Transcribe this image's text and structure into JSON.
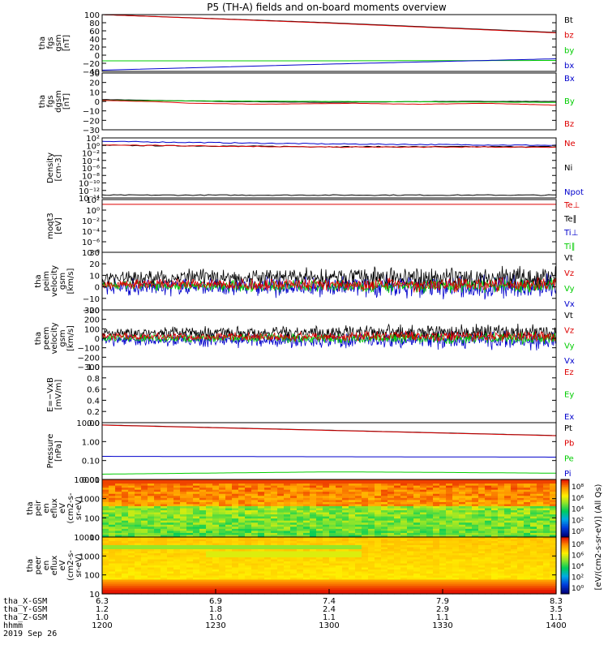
{
  "colors": {
    "black": "#000000",
    "red": "#dd0000",
    "green": "#00cc00",
    "blue": "#0000cc"
  },
  "chart_data": {
    "type": "line",
    "title": "P5 (TH-A) fields and on-board moments overview",
    "date": "2019 Sep 26",
    "time_axis": {
      "ticks": [
        "1200",
        "1230",
        "1300",
        "1330",
        "1400"
      ],
      "ephemeris": [
        {
          "label": "tha_X-GSM",
          "values": [
            "6.3",
            "6.9",
            "7.4",
            "7.9",
            "8.3"
          ]
        },
        {
          "label": "tha_Y-GSM",
          "values": [
            "1.2",
            "1.8",
            "2.4",
            "2.9",
            "3.5"
          ]
        },
        {
          "label": "tha_Z-GSM",
          "values": [
            "1.0",
            "1.0",
            "1.1",
            "1.1",
            "1.1"
          ]
        },
        {
          "label": "hhmm",
          "values": [
            "1200",
            "1230",
            "1300",
            "1330",
            "1400"
          ]
        }
      ]
    },
    "panels": [
      {
        "id": "fgs_gsm",
        "ylabel": [
          "tha",
          "fgs",
          "gsm",
          "[nT]"
        ],
        "ylim": [
          -40,
          100
        ],
        "scale": "linear",
        "yticks": [
          "100",
          "80",
          "60",
          "40",
          "20",
          "0",
          "−20",
          "−40"
        ],
        "legend": [
          {
            "name": "Bt",
            "color": "black"
          },
          {
            "name": "bz",
            "color": "red"
          },
          {
            "name": "by",
            "color": "green"
          },
          {
            "name": "bx",
            "color": "blue"
          }
        ],
        "series": [
          {
            "color": "black",
            "points": [
              [
                0,
                100
              ],
              [
                0.5,
                80
              ],
              [
                1,
                56
              ]
            ]
          },
          {
            "color": "red",
            "points": [
              [
                0,
                100
              ],
              [
                0.5,
                79
              ],
              [
                1,
                55
              ]
            ]
          },
          {
            "color": "green",
            "points": [
              [
                0,
                -14
              ],
              [
                0.5,
                -14
              ],
              [
                1,
                -13
              ]
            ]
          },
          {
            "color": "blue",
            "points": [
              [
                0,
                -37
              ],
              [
                0.5,
                -22
              ],
              [
                1,
                -9
              ]
            ]
          }
        ]
      },
      {
        "id": "fgs_dgsm",
        "ylabel": [
          "tha",
          "fgs",
          "dgsm",
          "[nT]"
        ],
        "ylim": [
          -30,
          30
        ],
        "scale": "linear",
        "yticks": [
          "30",
          "20",
          "10",
          "0",
          "−10",
          "−20",
          "−30"
        ],
        "legend": [
          {
            "name": "Bx",
            "color": "blue"
          },
          {
            "name": "By",
            "color": "green"
          },
          {
            "name": "Bz",
            "color": "red"
          }
        ],
        "series": [
          {
            "color": "black",
            "points": [
              [
                0,
                2
              ],
              [
                0.25,
                0
              ],
              [
                0.5,
                -1
              ],
              [
                0.75,
                0
              ],
              [
                1,
                0
              ]
            ]
          },
          {
            "color": "green",
            "points": [
              [
                0,
                1
              ],
              [
                0.5,
                0
              ],
              [
                1,
                -1
              ]
            ]
          },
          {
            "color": "red",
            "points": [
              [
                0,
                1
              ],
              [
                0.1,
                0
              ],
              [
                0.2,
                -2
              ],
              [
                0.35,
                -3
              ],
              [
                0.55,
                -2
              ],
              [
                0.7,
                -3
              ],
              [
                0.85,
                -2
              ],
              [
                1,
                -4
              ]
            ]
          }
        ]
      },
      {
        "id": "density",
        "ylabel": [
          "Density",
          "[cm-3]"
        ],
        "ylim": [
          -14,
          3
        ],
        "scale": "log",
        "yticks": [
          "10²",
          "10⁰",
          "10⁻²",
          "10⁻⁴",
          "10⁻⁶",
          "10⁻⁸",
          "10⁻¹⁰",
          "10⁻¹²",
          "10⁻¹⁴"
        ],
        "legend": [
          {
            "name": "Ne",
            "color": "red"
          },
          {
            "name": "Ni",
            "color": "black"
          },
          {
            "name": "Npot",
            "color": "blue"
          }
        ],
        "series": [
          {
            "color": "black",
            "points": [
              [
                0,
                0.9
              ],
              [
                0.5,
                0.5
              ],
              [
                1,
                0.5
              ]
            ]
          },
          {
            "color": "red",
            "points": [
              [
                0,
                1.0
              ],
              [
                0.5,
                0.4
              ],
              [
                1,
                0.4
              ]
            ]
          },
          {
            "color": "blue",
            "points": [
              [
                0,
                2.0
              ],
              [
                0.5,
                1.3
              ],
              [
                1,
                0.9
              ]
            ]
          },
          {
            "color": "black",
            "points": [
              [
                0,
                -13.2
              ],
              [
                1,
                -13.2
              ]
            ]
          }
        ]
      },
      {
        "id": "temperature",
        "ylabel": [
          "moqt3",
          "[eV]"
        ],
        "ylim": [
          -8,
          3
        ],
        "scale": "log",
        "yticks": [
          "10²",
          "10⁰",
          "10⁻²",
          "10⁻⁴",
          "10⁻⁶",
          "10⁻⁸"
        ],
        "legend": [
          {
            "name": "Te⊥",
            "color": "red"
          },
          {
            "name": "Te∥",
            "color": "black"
          },
          {
            "name": "Ti⊥",
            "color": "blue"
          },
          {
            "name": "Ti∥",
            "color": "green"
          }
        ],
        "series": [
          {
            "color": "black",
            "points": [
              [
                0,
                3.0
              ],
              [
                1,
                3.0
              ]
            ]
          },
          {
            "color": "red",
            "points": [
              [
                0,
                2.0
              ],
              [
                1,
                2.0
              ]
            ]
          }
        ]
      },
      {
        "id": "vel_esa",
        "ylabel": [
          "tha",
          "peim",
          "velocity",
          "gsm",
          "[km/s]"
        ],
        "ylim": [
          -20,
          30
        ],
        "scale": "linear",
        "yticks": [
          "30",
          "20",
          "10",
          "0",
          "−10",
          "−20"
        ],
        "legend": [
          {
            "name": "Vt",
            "color": "black"
          },
          {
            "name": "Vz",
            "color": "red"
          },
          {
            "name": "Vy",
            "color": "green"
          },
          {
            "name": "Vx",
            "color": "blue"
          }
        ],
        "noise": [
          {
            "color": "blue",
            "center": 0,
            "amp": 10
          },
          {
            "color": "green",
            "center": 1,
            "amp": 6
          },
          {
            "color": "black",
            "center": 8,
            "amp": 9
          },
          {
            "color": "red",
            "center": 2,
            "amp": 6
          }
        ]
      },
      {
        "id": "vel_eem",
        "ylabel": [
          "tha",
          "peem",
          "velocity",
          "gsm",
          "[km/s]"
        ],
        "ylim": [
          -300,
          300
        ],
        "scale": "linear",
        "yticks": [
          "300",
          "200",
          "100",
          "0",
          "−100",
          "−200",
          "−300"
        ],
        "legend": [
          {
            "name": "Vt",
            "color": "black"
          },
          {
            "name": "Vz",
            "color": "red"
          },
          {
            "name": "Vy",
            "color": "green"
          },
          {
            "name": "Vx",
            "color": "blue"
          }
        ],
        "noise": [
          {
            "color": "blue",
            "center": -20,
            "amp": 90
          },
          {
            "color": "black",
            "center": 60,
            "amp": 80
          },
          {
            "color": "green",
            "center": 0,
            "amp": 60
          },
          {
            "color": "red",
            "center": 20,
            "amp": 55
          }
        ]
      },
      {
        "id": "efield",
        "ylabel": [
          "E=−VxB",
          "[mV/m]"
        ],
        "ylim": [
          0,
          1
        ],
        "scale": "linear",
        "yticks": [
          "1.0",
          "0.8",
          "0.6",
          "0.4",
          "0.2",
          "0.0"
        ],
        "legend": [
          {
            "name": "Ez",
            "color": "red"
          },
          {
            "name": "Ey",
            "color": "green"
          },
          {
            "name": "Ex",
            "color": "blue"
          }
        ],
        "series": []
      },
      {
        "id": "pressure",
        "ylabel": [
          "Pressure",
          "[nPa]"
        ],
        "ylim": [
          -2,
          1
        ],
        "scale": "log",
        "yticks": [
          "10.00",
          "1.00",
          "0.10",
          "0.01"
        ],
        "legend": [
          {
            "name": "Pt",
            "color": "black"
          },
          {
            "name": "Pb",
            "color": "red"
          },
          {
            "name": "Pe",
            "color": "green"
          },
          {
            "name": "Pi",
            "color": "blue"
          }
        ],
        "series": [
          {
            "color": "black",
            "points": [
              [
                0,
                0.88
              ],
              [
                0.5,
                0.6
              ],
              [
                1,
                0.32
              ]
            ]
          },
          {
            "color": "red",
            "points": [
              [
                0,
                0.87
              ],
              [
                0.5,
                0.59
              ],
              [
                1,
                0.31
              ]
            ]
          },
          {
            "color": "blue",
            "points": [
              [
                0,
                -0.78
              ],
              [
                0.5,
                -0.8
              ],
              [
                1,
                -0.82
              ]
            ]
          },
          {
            "color": "green",
            "points": [
              [
                0,
                -1.72
              ],
              [
                0.5,
                -1.6
              ],
              [
                0.7,
                -1.62
              ],
              [
                1,
                -1.67
              ]
            ]
          }
        ]
      },
      {
        "id": "peir_spec",
        "type": "heatmap",
        "ylabel": [
          "tha",
          "peir",
          "en",
          "eflux",
          "eV",
          "(cm2-s-",
          "sr-eV)"
        ],
        "ylim": [
          5,
          20000
        ],
        "scale": "log",
        "yticks": [
          "10000",
          "1000",
          "100",
          "10"
        ],
        "colorbar": {
          "label": "[eV/(cm2-s-sr-eV)] (All Qs)",
          "ticks": [
            "10⁸",
            "10⁶",
            "10⁴",
            "10²",
            "10⁰"
          ]
        }
      },
      {
        "id": "peer_spec",
        "type": "heatmap",
        "ylabel": [
          "tha",
          "peer",
          "en",
          "eflux",
          "eV",
          "(cm2-s-",
          "sr-eV)"
        ],
        "ylim": [
          5,
          20000
        ],
        "scale": "log",
        "yticks": [
          "10000",
          "1000",
          "100",
          "10"
        ],
        "colorbar": {
          "label": "[eV/(cm2-s-sr-eV)]",
          "ticks": [
            "10⁸",
            "10⁶",
            "10⁴",
            "10²",
            "10⁰"
          ]
        }
      }
    ]
  }
}
